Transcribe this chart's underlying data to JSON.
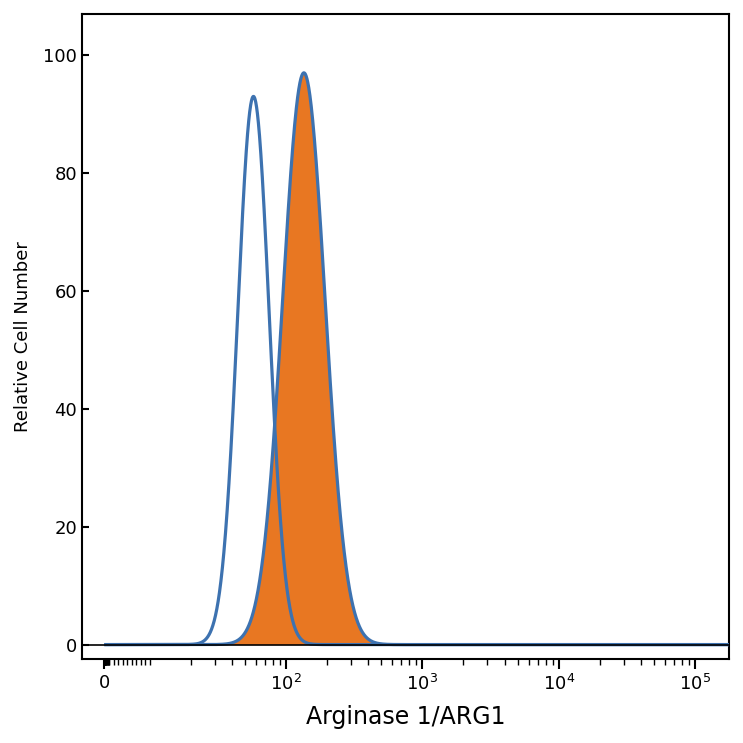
{
  "title": "",
  "xlabel": "Arginase 1/ARG1",
  "ylabel": "Relative Cell Number",
  "ylim": [
    -2.5,
    107
  ],
  "yticks": [
    0,
    20,
    40,
    60,
    80,
    100
  ],
  "background_color": "#ffffff",
  "isotype_color": "#3D72B0",
  "specific_color": "#E87722",
  "isotype_peak_log": 1.76,
  "isotype_peak_val": 93,
  "specific_peak_log": 2.13,
  "specific_peak_val": 97,
  "isotype_sigma_log": 0.115,
  "specific_sigma_log": 0.155,
  "xlabel_fontsize": 17,
  "ylabel_fontsize": 13,
  "tick_fontsize": 13,
  "linewidth": 2.3,
  "linthresh": 10,
  "linscale": 0.3
}
